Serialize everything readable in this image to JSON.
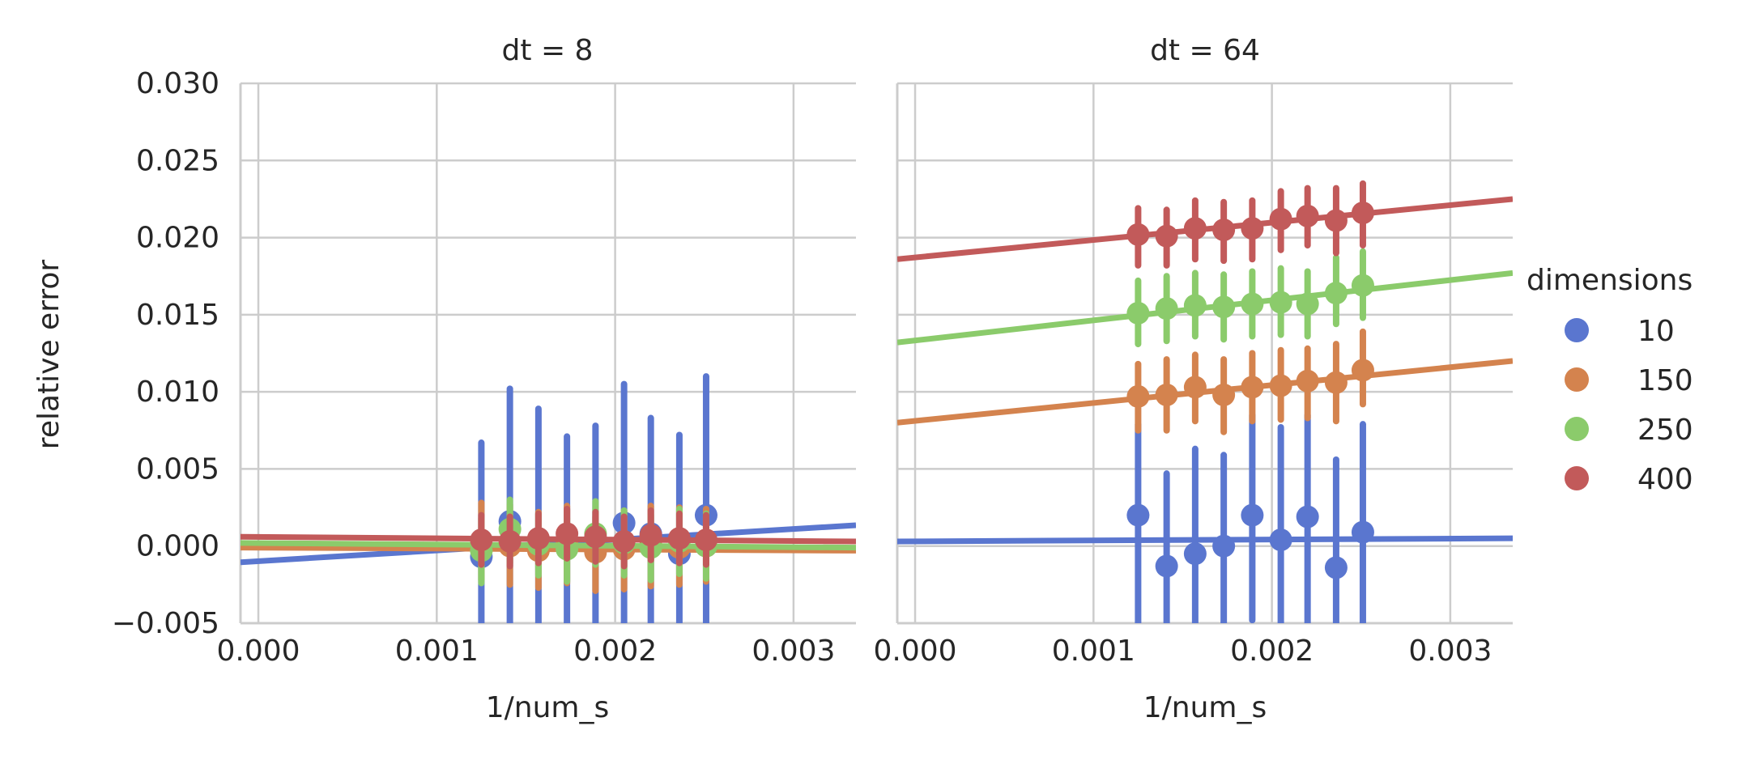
{
  "chart_data": [
    {
      "type": "scatter",
      "title": "dt = 8",
      "xlabel": "1/num_s",
      "ylabel": "relative error",
      "xlim": [
        -0.0001,
        0.00335
      ],
      "ylim": [
        -0.005,
        0.03
      ],
      "xticks": [
        0.0,
        0.001,
        0.002,
        0.003
      ],
      "xtick_labels": [
        "0.000",
        "0.001",
        "0.002",
        "0.003"
      ],
      "yticks": [
        -0.005,
        0.0,
        0.005,
        0.01,
        0.015,
        0.02,
        0.025,
        0.03
      ],
      "ytick_labels": [
        "−0.005",
        "0.000",
        "0.005",
        "0.010",
        "0.015",
        "0.020",
        "0.025",
        "0.030"
      ],
      "grid": true,
      "x": [
        0.00125,
        0.00141,
        0.00157,
        0.00173,
        0.00189,
        0.00205,
        0.0022,
        0.00236,
        0.00251
      ],
      "series": [
        {
          "name": "10",
          "color": "#5a76cf",
          "y": [
            -0.0007,
            0.0016,
            -0.0002,
            -0.0001,
            0.0003,
            0.0015,
            0.0008,
            -0.0005,
            0.002
          ],
          "err_low": [
            -0.0065,
            -0.0065,
            -0.0065,
            -0.0065,
            -0.0065,
            -0.0065,
            -0.0065,
            -0.0065,
            -0.0065
          ],
          "err_high": [
            0.0067,
            0.0102,
            0.0089,
            0.0071,
            0.0078,
            0.0105,
            0.0083,
            0.0072,
            0.011
          ],
          "fit": [
            -0.00105,
            0.00135
          ]
        },
        {
          "name": "150",
          "color": "#d4834e",
          "y": [
            0.0001,
            0.0,
            -0.0003,
            0.0002,
            -0.0004,
            -0.0002,
            0.0001,
            -0.0001,
            0.0
          ],
          "err_low": [
            -0.0022,
            -0.0025,
            -0.0027,
            -0.0024,
            -0.0029,
            -0.0028,
            -0.0026,
            -0.0025,
            -0.0023
          ],
          "err_high": [
            0.0028,
            0.0027,
            0.0022,
            0.0026,
            0.0019,
            0.0023,
            0.0026,
            0.0025,
            0.0024
          ],
          "fit": [
            -0.0001,
            -0.0003
          ]
        },
        {
          "name": "250",
          "color": "#8bcb6b",
          "y": [
            -0.0003,
            0.0011,
            0.0001,
            -0.0002,
            0.0008,
            0.0002,
            -0.0001,
            0.0003,
            0.0
          ],
          "err_low": [
            -0.0024,
            -0.0011,
            -0.0019,
            -0.0023,
            -0.0012,
            -0.0019,
            -0.0022,
            -0.0018,
            -0.0021
          ],
          "err_high": [
            0.0018,
            0.003,
            0.0021,
            0.0018,
            0.0029,
            0.0023,
            0.002,
            0.0024,
            0.0021
          ],
          "fit": [
            0.0002,
            -0.0001
          ]
        },
        {
          "name": "400",
          "color": "#c25a5a",
          "y": [
            0.0004,
            0.0003,
            0.0005,
            0.0008,
            0.0006,
            0.0003,
            0.0007,
            0.0005,
            0.0004
          ],
          "err_low": [
            -0.0012,
            -0.0013,
            -0.0011,
            -0.0008,
            -0.001,
            -0.0013,
            -0.0009,
            -0.0011,
            -0.0012
          ],
          "err_high": [
            0.002,
            0.0019,
            0.0021,
            0.0024,
            0.0022,
            0.0019,
            0.0023,
            0.0021,
            0.002
          ],
          "fit": [
            0.0006,
            0.0003
          ]
        }
      ]
    },
    {
      "type": "scatter",
      "title": "dt = 64",
      "xlabel": "1/num_s",
      "xlim": [
        -0.0001,
        0.00335
      ],
      "ylim": [
        -0.005,
        0.03
      ],
      "xticks": [
        0.0,
        0.001,
        0.002,
        0.003
      ],
      "xtick_labels": [
        "0.000",
        "0.001",
        "0.002",
        "0.003"
      ],
      "grid": true,
      "x": [
        0.00125,
        0.00141,
        0.00157,
        0.00173,
        0.00189,
        0.00205,
        0.0022,
        0.00236,
        0.00251
      ],
      "series": [
        {
          "name": "10",
          "color": "#5a76cf",
          "y": [
            0.002,
            -0.0013,
            -0.0005,
            0.0,
            0.002,
            0.0004,
            0.0019,
            -0.0014,
            0.0009
          ],
          "err_low": [
            -0.0065,
            -0.0065,
            -0.0065,
            -0.0065,
            -0.0048,
            -0.0065,
            -0.0065,
            -0.0065,
            -0.0065
          ],
          "err_high": [
            0.0079,
            0.0047,
            0.0063,
            0.0059,
            0.0085,
            0.0077,
            0.0085,
            0.0056,
            0.0079
          ],
          "fit": [
            0.0003,
            0.0005
          ]
        },
        {
          "name": "150",
          "color": "#d4834e",
          "y": [
            0.0097,
            0.0098,
            0.0103,
            0.0098,
            0.0103,
            0.0104,
            0.0107,
            0.0106,
            0.0114
          ],
          "err_low": [
            0.0075,
            0.0075,
            0.0081,
            0.0074,
            0.0081,
            0.0082,
            0.0083,
            0.0081,
            0.0092
          ],
          "err_high": [
            0.0118,
            0.0121,
            0.0124,
            0.0121,
            0.0125,
            0.0127,
            0.0128,
            0.0131,
            0.0139
          ],
          "fit": [
            0.008,
            0.012
          ]
        },
        {
          "name": "250",
          "color": "#8bcb6b",
          "y": [
            0.0151,
            0.0154,
            0.0156,
            0.0155,
            0.0157,
            0.0158,
            0.0157,
            0.0164,
            0.0169
          ],
          "err_low": [
            0.0131,
            0.0133,
            0.0136,
            0.0134,
            0.0136,
            0.0137,
            0.0136,
            0.0144,
            0.0148
          ],
          "err_high": [
            0.0172,
            0.0175,
            0.0177,
            0.0176,
            0.0178,
            0.018,
            0.0178,
            0.0187,
            0.0191
          ],
          "fit": [
            0.0132,
            0.0177
          ]
        },
        {
          "name": "400",
          "color": "#c25a5a",
          "y": [
            0.0202,
            0.0201,
            0.0206,
            0.0205,
            0.0206,
            0.0212,
            0.0214,
            0.0211,
            0.0216
          ],
          "err_low": [
            0.0182,
            0.0182,
            0.0186,
            0.0185,
            0.0186,
            0.0192,
            0.0195,
            0.019,
            0.0195
          ],
          "err_high": [
            0.0219,
            0.0218,
            0.0224,
            0.0223,
            0.0224,
            0.023,
            0.0232,
            0.0232,
            0.0235
          ],
          "fit": [
            0.0186,
            0.0225
          ]
        }
      ]
    }
  ],
  "legend": {
    "title": "dimensions",
    "placement": "right",
    "items": [
      {
        "label": "10",
        "color": "#5a76cf"
      },
      {
        "label": "150",
        "color": "#d4834e"
      },
      {
        "label": "250",
        "color": "#8bcb6b"
      },
      {
        "label": "400",
        "color": "#c25a5a"
      }
    ]
  }
}
